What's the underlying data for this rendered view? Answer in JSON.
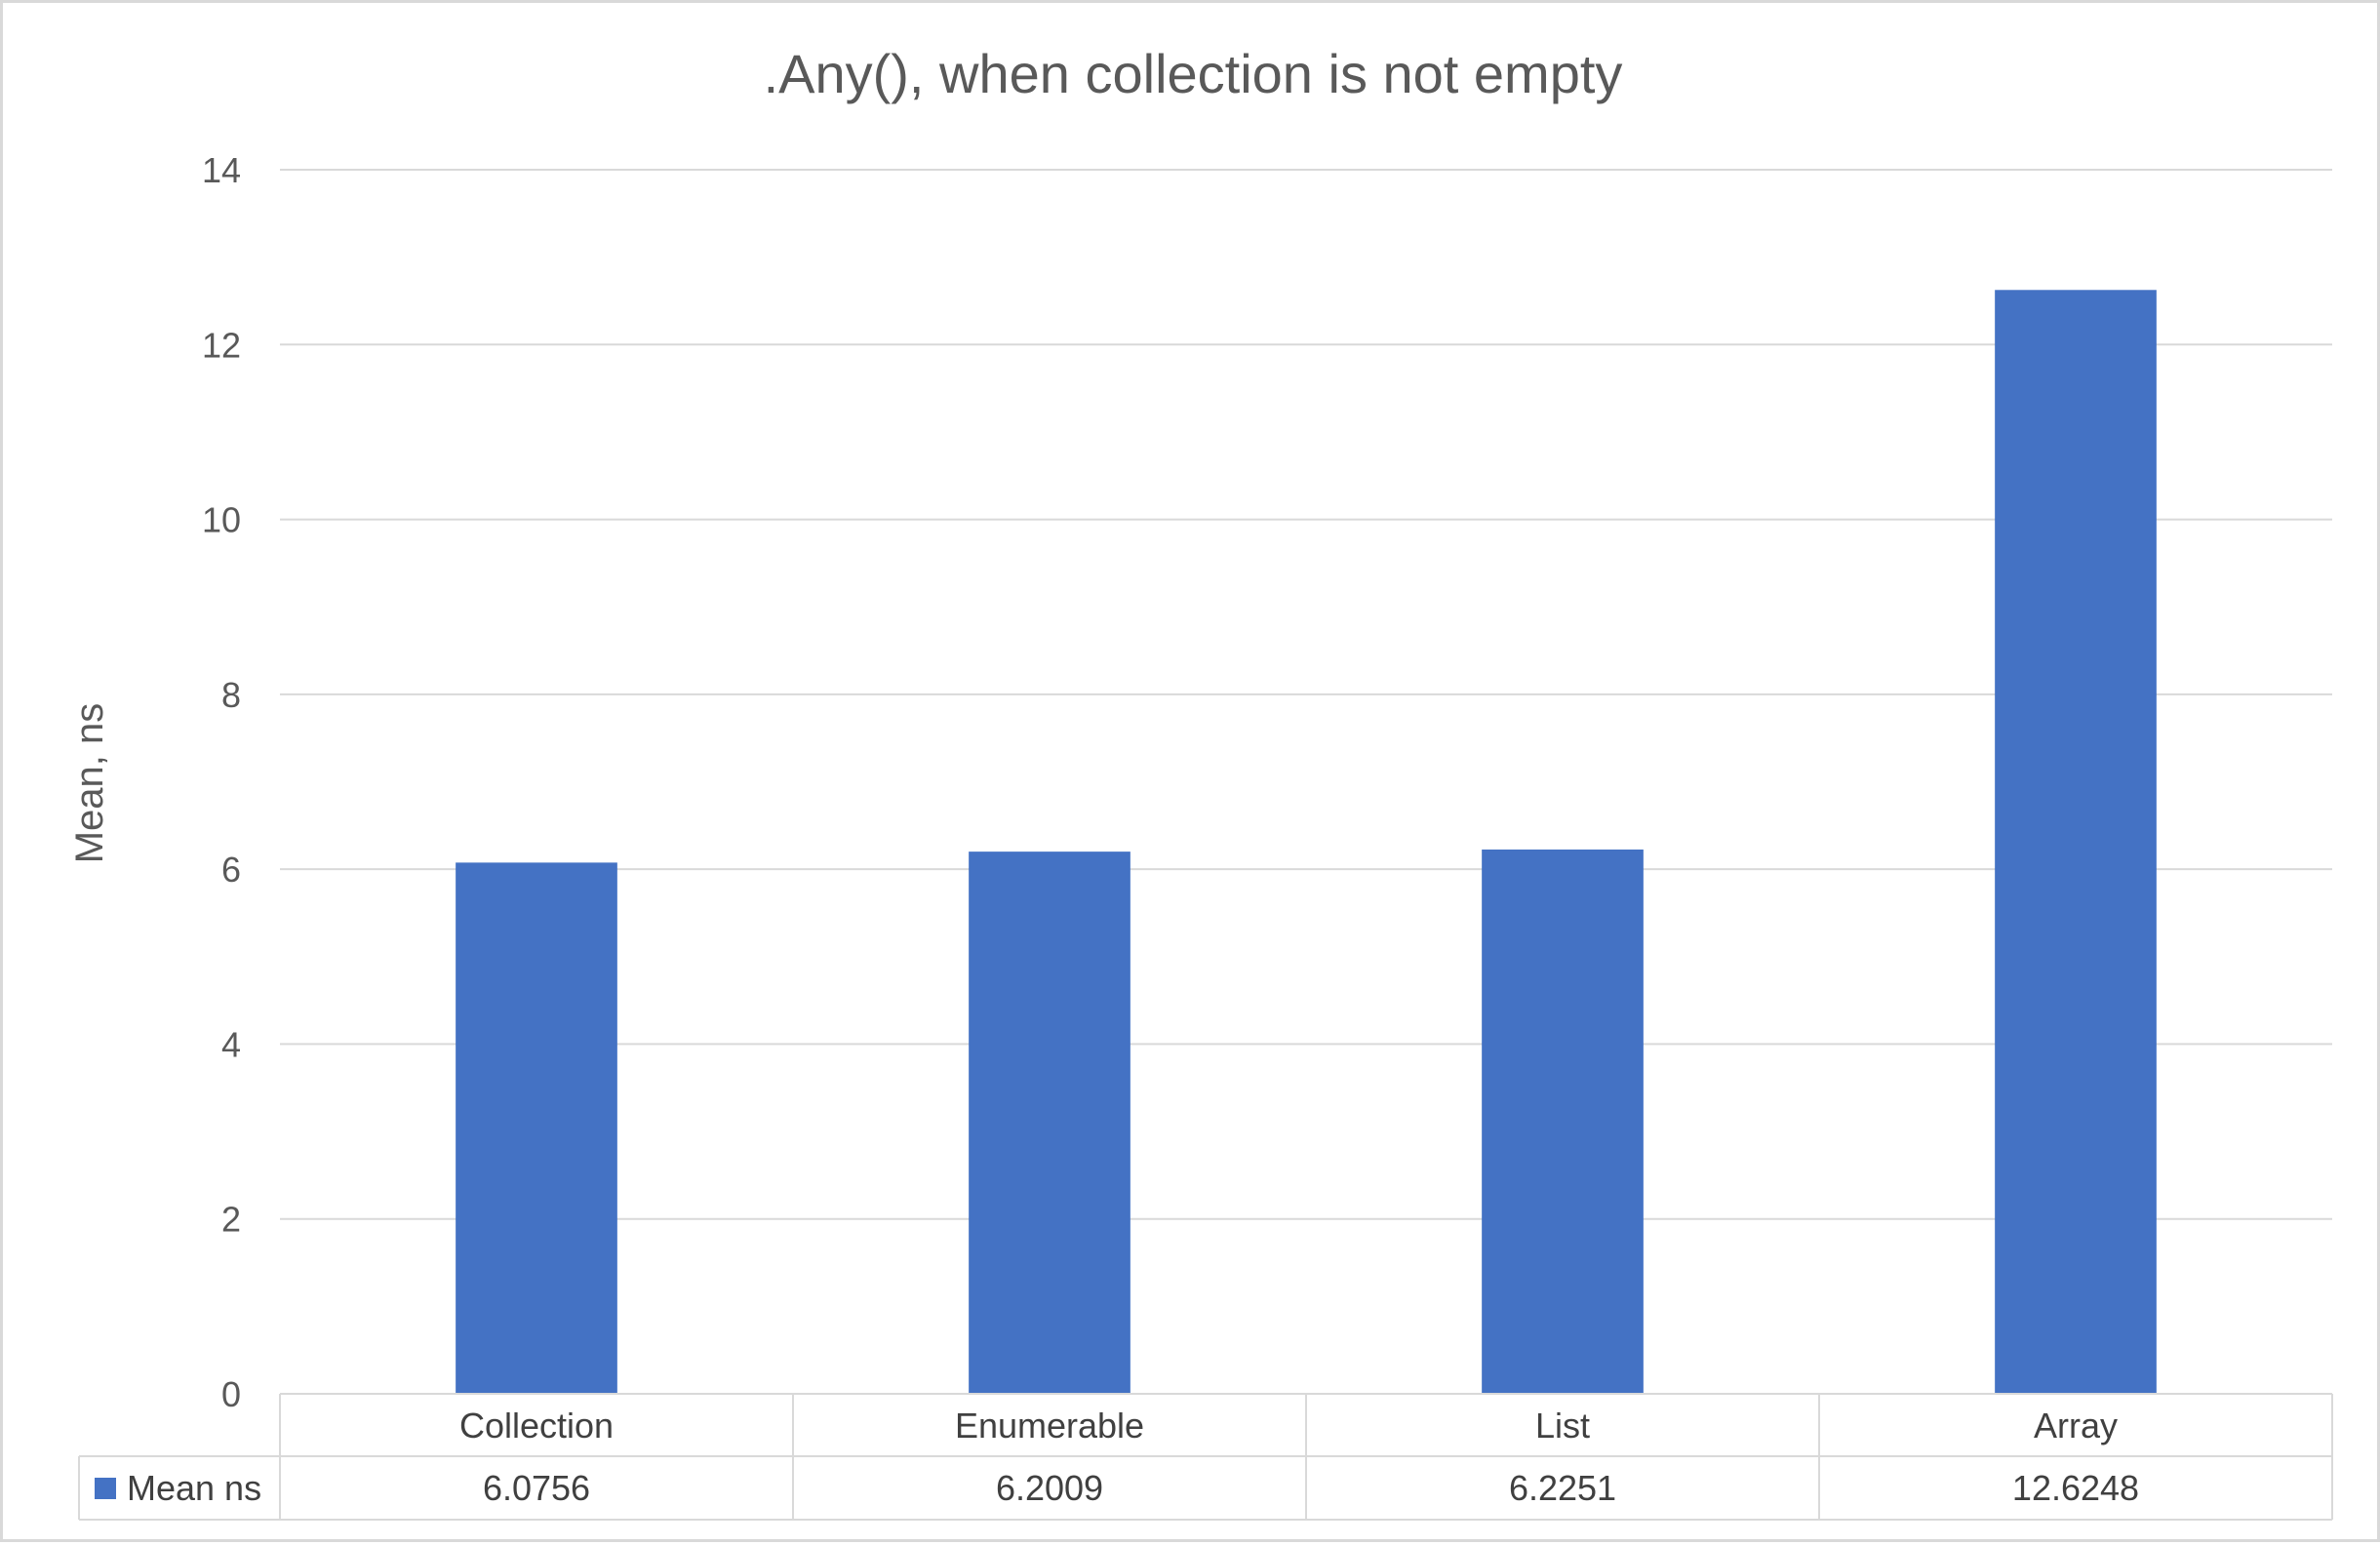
{
  "chart_data": {
    "type": "bar",
    "title": ".Any(), when collection is not empty",
    "ylabel": "Mean, ns",
    "xlabel": "",
    "ylim": [
      0,
      14
    ],
    "yticks": [
      0,
      2,
      4,
      6,
      8,
      10,
      12,
      14
    ],
    "categories": [
      "Collection",
      "Enumerable",
      "List",
      "Array"
    ],
    "series": [
      {
        "name": "Mean ns",
        "values": [
          6.0756,
          6.2009,
          6.2251,
          12.6248
        ],
        "value_labels": [
          "6.0756",
          "6.2009",
          "6.2251",
          "12.6248"
        ]
      }
    ],
    "grid": true,
    "legend": "data-table",
    "data_table": true,
    "colors": {
      "bar": "#4472C4",
      "grid": "#d9d9d9",
      "text": "#595959",
      "table_border": "#d9d9d9"
    }
  }
}
